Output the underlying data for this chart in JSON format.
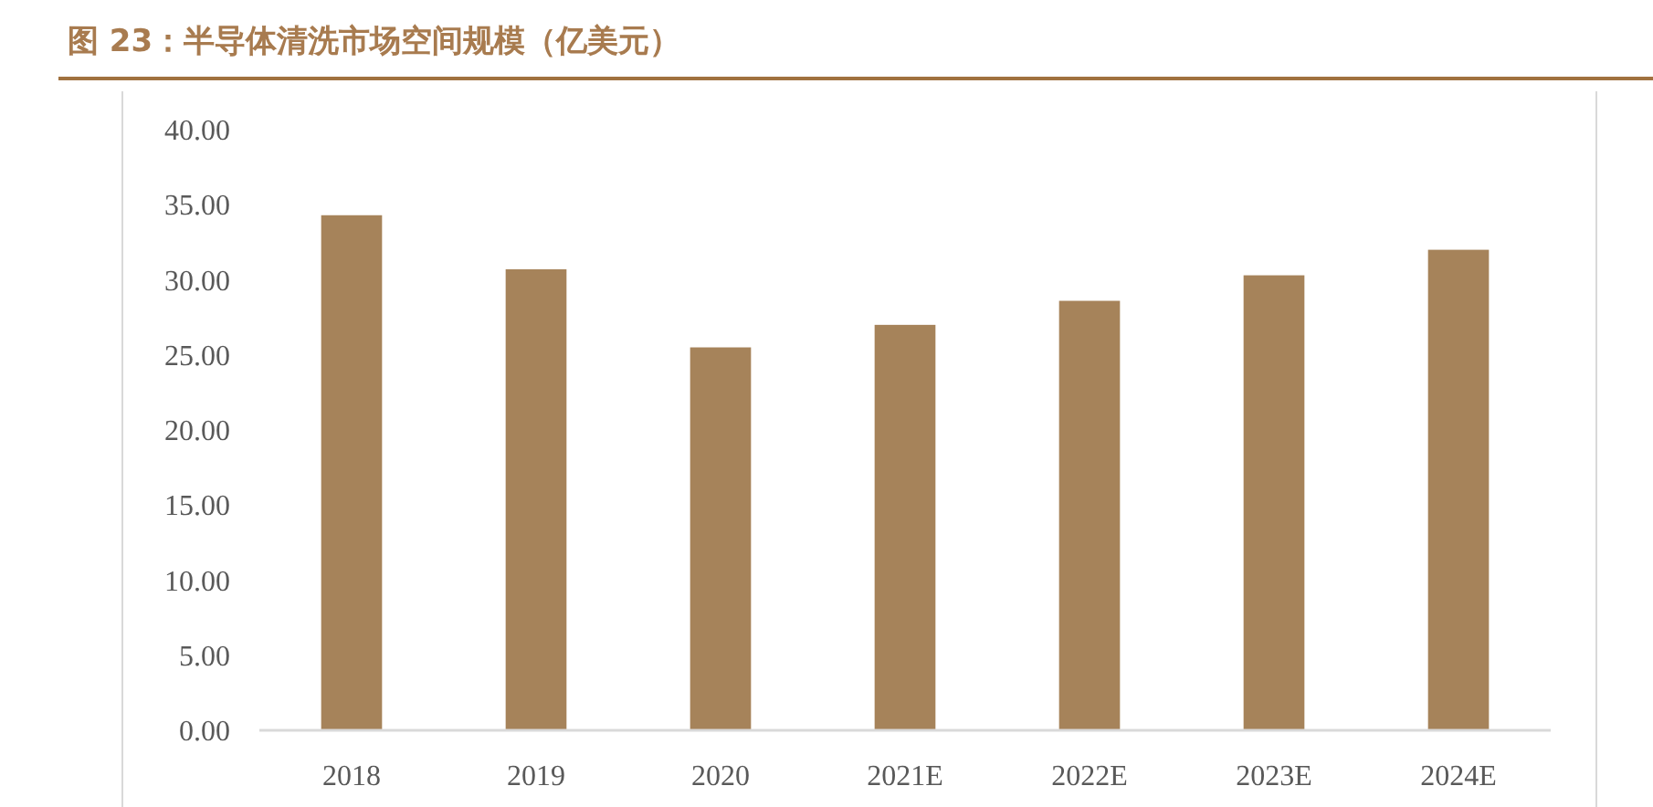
{
  "chart_data": {
    "type": "bar",
    "title": "图 23：半导体清洗市场空间规模（亿美元）",
    "categories": [
      "2018",
      "2019",
      "2020",
      "2021E",
      "2022E",
      "2023E",
      "2024E"
    ],
    "values": [
      34.3,
      30.7,
      25.5,
      27.0,
      28.6,
      30.3,
      32.0
    ],
    "color": "#a6835a",
    "ylim": [
      0,
      40
    ],
    "yticks": [
      {
        "value": 0,
        "label": "0.00"
      },
      {
        "value": 5,
        "label": "5.00"
      },
      {
        "value": 10,
        "label": "10.00"
      },
      {
        "value": 15,
        "label": "15.00"
      },
      {
        "value": 20,
        "label": "20.00"
      },
      {
        "value": 25,
        "label": "25.00"
      },
      {
        "value": 30,
        "label": "30.00"
      },
      {
        "value": 35,
        "label": "35.00"
      },
      {
        "value": 40,
        "label": "40.00"
      }
    ],
    "grid": false
  }
}
